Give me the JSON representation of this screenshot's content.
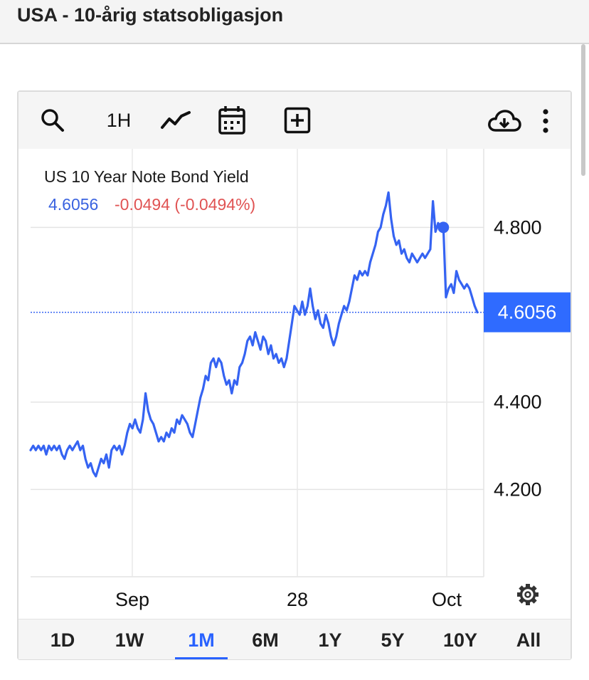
{
  "page": {
    "title": "USA - 10-årig statsobligasjon"
  },
  "toolbar": {
    "search_icon": "search-icon",
    "interval_label": "1H",
    "chart_type_icon": "line-chart-icon",
    "calendar_icon": "calendar-icon",
    "compare_icon": "plus-square-icon",
    "download_icon": "cloud-download-icon",
    "more_icon": "more-vertical-icon"
  },
  "legend": {
    "symbol": "US 10 Year Note Bond Yield",
    "last": "4.6056",
    "change": "-0.0494",
    "change_pct": "(-0.0494%)"
  },
  "colors": {
    "line": "#3563f2",
    "up": "#3a63e0",
    "down": "#e05353",
    "last_label_bg": "#2f6bff"
  },
  "chart_data": {
    "type": "line",
    "title": "US 10 Year Note Bond Yield",
    "xlabel": "",
    "ylabel": "",
    "x_ticks": [
      "Sep",
      "28",
      "Oct"
    ],
    "y_ticks": [
      4.2,
      4.4,
      4.8
    ],
    "y_tick_labels": [
      "4.200",
      "4.400",
      "4.800"
    ],
    "ylim": [
      4.0,
      4.98
    ],
    "grid": true,
    "last_value": 4.6056,
    "last_value_label": "4.6056",
    "series": [
      {
        "values": [
          4.29,
          4.3,
          4.29,
          4.3,
          4.29,
          4.3,
          4.28,
          4.3,
          4.29,
          4.3,
          4.29,
          4.3,
          4.28,
          4.27,
          4.29,
          4.3,
          4.29,
          4.3,
          4.31,
          4.29,
          4.3,
          4.27,
          4.25,
          4.26,
          4.24,
          4.23,
          4.25,
          4.27,
          4.26,
          4.28,
          4.25,
          4.29,
          4.3,
          4.29,
          4.3,
          4.28,
          4.3,
          4.33,
          4.35,
          4.34,
          4.36,
          4.34,
          4.33,
          4.36,
          4.42,
          4.38,
          4.36,
          4.35,
          4.33,
          4.31,
          4.32,
          4.31,
          4.33,
          4.32,
          4.34,
          4.33,
          4.36,
          4.35,
          4.37,
          4.36,
          4.35,
          4.33,
          4.32,
          4.35,
          4.38,
          4.41,
          4.43,
          4.46,
          4.45,
          4.49,
          4.5,
          4.48,
          4.5,
          4.49,
          4.46,
          4.44,
          4.45,
          4.42,
          4.45,
          4.44,
          4.48,
          4.49,
          4.51,
          4.54,
          4.55,
          4.53,
          4.56,
          4.54,
          4.52,
          4.55,
          4.54,
          4.51,
          4.53,
          4.5,
          4.51,
          4.49,
          4.5,
          4.48,
          4.5,
          4.54,
          4.58,
          4.62,
          4.61,
          4.6,
          4.63,
          4.6,
          4.62,
          4.66,
          4.62,
          4.59,
          4.61,
          4.58,
          4.57,
          4.6,
          4.58,
          4.55,
          4.53,
          4.55,
          4.58,
          4.6,
          4.62,
          4.61,
          4.63,
          4.66,
          4.69,
          4.68,
          4.7,
          4.69,
          4.7,
          4.69,
          4.72,
          4.74,
          4.76,
          4.79,
          4.8,
          4.83,
          4.85,
          4.88,
          4.82,
          4.78,
          4.76,
          4.77,
          4.74,
          4.75,
          4.73,
          4.72,
          4.74,
          4.73,
          4.72,
          4.73,
          4.74,
          4.73,
          4.74,
          4.75,
          4.86,
          4.79,
          4.81,
          4.8,
          4.8,
          4.64,
          4.66,
          4.67,
          4.65,
          4.7,
          4.68,
          4.67,
          4.66,
          4.67,
          4.66,
          4.64,
          4.62,
          4.6056
        ]
      }
    ]
  },
  "settings_icon": "gear-icon",
  "timeframes": {
    "active": "1M",
    "items": [
      "1D",
      "1W",
      "1M",
      "6M",
      "1Y",
      "5Y",
      "10Y",
      "All"
    ]
  }
}
